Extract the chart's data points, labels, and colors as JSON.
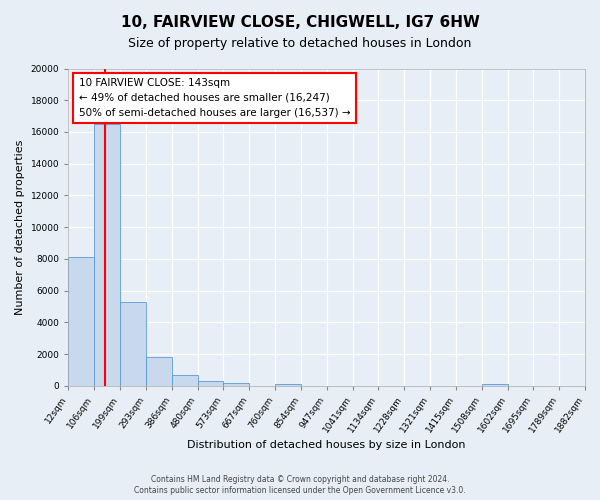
{
  "title_line1": "10, FAIRVIEW CLOSE, CHIGWELL, IG7 6HW",
  "title_line2": "Size of property relative to detached houses in London",
  "xlabel": "Distribution of detached houses by size in London",
  "ylabel": "Number of detached properties",
  "bar_edges": [
    12,
    106,
    199,
    293,
    386,
    480,
    573,
    667,
    760,
    854,
    947,
    1041,
    1134,
    1228,
    1321,
    1415,
    1508,
    1602,
    1695,
    1789,
    1882
  ],
  "bar_heights": [
    8100,
    16500,
    5300,
    1800,
    700,
    300,
    150,
    0,
    120,
    0,
    0,
    0,
    0,
    0,
    0,
    0,
    120,
    0,
    0,
    0
  ],
  "bar_color": "#c9d9ed",
  "bar_edgecolor": "#5b9bd5",
  "red_line_x": 143,
  "annotation_line1": "10 FAIRVIEW CLOSE: 143sqm",
  "annotation_line2": "← 49% of detached houses are smaller (16,247)",
  "annotation_line3": "50% of semi-detached houses are larger (16,537) →",
  "ylim": [
    0,
    20000
  ],
  "yticks": [
    0,
    2000,
    4000,
    6000,
    8000,
    10000,
    12000,
    14000,
    16000,
    18000,
    20000
  ],
  "tick_labels": [
    "12sqm",
    "106sqm",
    "199sqm",
    "293sqm",
    "386sqm",
    "480sqm",
    "573sqm",
    "667sqm",
    "760sqm",
    "854sqm",
    "947sqm",
    "1041sqm",
    "1134sqm",
    "1228sqm",
    "1321sqm",
    "1415sqm",
    "1508sqm",
    "1602sqm",
    "1695sqm",
    "1789sqm",
    "1882sqm"
  ],
  "bg_color": "#e8eef6",
  "plot_bg_color": "#e8eef6",
  "footer_line1": "Contains HM Land Registry data © Crown copyright and database right 2024.",
  "footer_line2": "Contains public sector information licensed under the Open Government Licence v3.0."
}
